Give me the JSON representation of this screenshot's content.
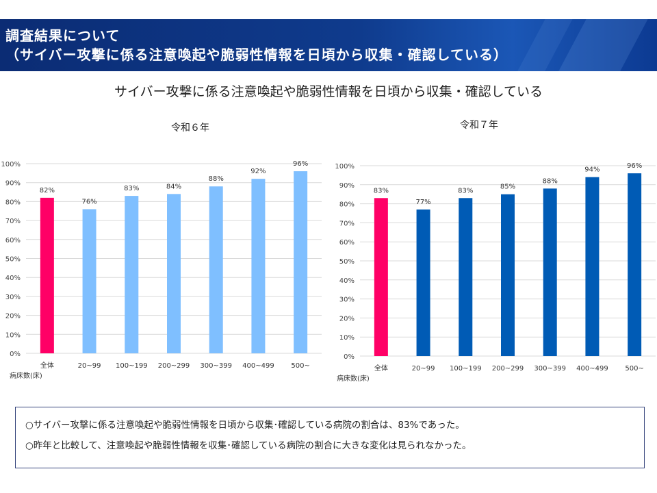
{
  "header": {
    "line1": "調査結果について",
    "line2": "（サイバー攻撃に係る注意喚起や脆弱性情報を日頃から収集・確認している）"
  },
  "main_title": "サイバー攻撃に係る注意喚起や脆弱性情報を日頃から収集・確認している",
  "colors": {
    "total_bar": "#ff0066",
    "r6_bar": "#7fbfff",
    "r7_bar": "#005bb5",
    "grid": "#d9d9d9",
    "banner": "#0f3b8d"
  },
  "chart_data": [
    {
      "type": "bar",
      "title": "令和６年",
      "categories": [
        "全体",
        "20~99",
        "100~199",
        "200~299",
        "300~399",
        "400~499",
        "500~"
      ],
      "values": [
        82,
        76,
        83,
        84,
        88,
        92,
        96
      ],
      "value_labels": [
        "82%",
        "76%",
        "83%",
        "84%",
        "88%",
        "92%",
        "96%"
      ],
      "y_ticks": [
        "0%",
        "10%",
        "20%",
        "30%",
        "40%",
        "50%",
        "60%",
        "70%",
        "80%",
        "90%",
        "100%"
      ],
      "ylim": [
        0,
        100
      ],
      "xlabel": "病床数(床)",
      "grid": true
    },
    {
      "type": "bar",
      "title": "令和７年",
      "categories": [
        "全体",
        "20~99",
        "100~199",
        "200~299",
        "300~399",
        "400~499",
        "500~"
      ],
      "values": [
        83,
        77,
        83,
        85,
        88,
        94,
        96
      ],
      "value_labels": [
        "83%",
        "77%",
        "83%",
        "85%",
        "88%",
        "94%",
        "96%"
      ],
      "y_ticks": [
        "0%",
        "10%",
        "20%",
        "30%",
        "40%",
        "50%",
        "60%",
        "70%",
        "80%",
        "90%",
        "100%"
      ],
      "ylim": [
        0,
        100
      ],
      "xlabel": "病床数(床)",
      "grid": true
    }
  ],
  "notes": [
    "○サイバー攻撃に係る注意喚起や脆弱性情報を日頃から収集･確認している病院の割合は、83%であった。",
    "○昨年と比較して、注意喚起や脆弱性情報を収集･確認している病院の割合に大きな変化は見られなかった。"
  ]
}
